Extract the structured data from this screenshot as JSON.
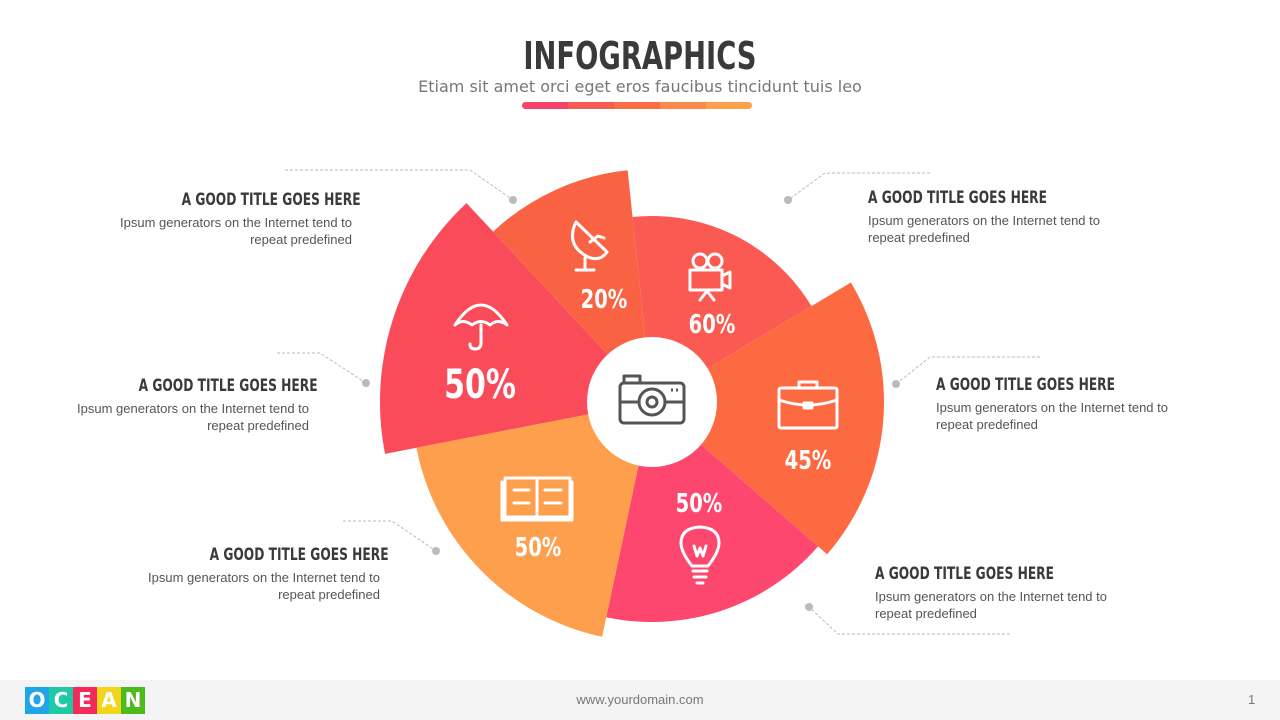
{
  "header": {
    "title": "INFOGRAPHICS",
    "subtitle": "Etiam sit amet orci eget eros faucibus tincidunt tuis leo",
    "bar_colors": [
      "#f5436a",
      "#f75a50",
      "#fb6e45",
      "#fc8a48",
      "#fda04c"
    ]
  },
  "center_icon": "camera-icon",
  "segments": [
    {
      "icon": "umbrella-icon",
      "value": "50%",
      "color": "#f94b5a"
    },
    {
      "icon": "satellite-dish-icon",
      "value": "20%",
      "color": "#f96343"
    },
    {
      "icon": "movie-camera-icon",
      "value": "60%",
      "color": "#fb5a52"
    },
    {
      "icon": "briefcase-icon",
      "value": "45%",
      "color": "#fd6a42"
    },
    {
      "icon": "lightbulb-icon",
      "value": "50%",
      "color": "#fd476e"
    },
    {
      "icon": "open-book-icon",
      "value": "50%",
      "color": "#fd9f4c"
    }
  ],
  "labels": [
    {
      "title": "A GOOD TITLE GOES HERE",
      "text": "Ipsum generators on the Internet tend to repeat predefined"
    },
    {
      "title": "A GOOD TITLE GOES HERE",
      "text": "Ipsum generators on the Internet tend to repeat predefined"
    },
    {
      "title": "A GOOD TITLE GOES HERE",
      "text": "Ipsum generators on the Internet tend to repeat predefined"
    },
    {
      "title": "A GOOD TITLE GOES HERE",
      "text": "Ipsum generators on the Internet tend to repeat predefined"
    },
    {
      "title": "A GOOD TITLE GOES HERE",
      "text": "Ipsum generators on the Internet tend to repeat predefined"
    },
    {
      "title": "A GOOD TITLE GOES HERE",
      "text": "Ipsum generators on the Internet tend to repeat predefined"
    }
  ],
  "footer": {
    "logo": [
      "O",
      "C",
      "E",
      "A",
      "N"
    ],
    "logo_colors": [
      "#1ea6e8",
      "#1ecaa6",
      "#f42a5a",
      "#f2d61c",
      "#4cbb1c"
    ],
    "url": "www.yourdomain.com",
    "page": "1"
  }
}
